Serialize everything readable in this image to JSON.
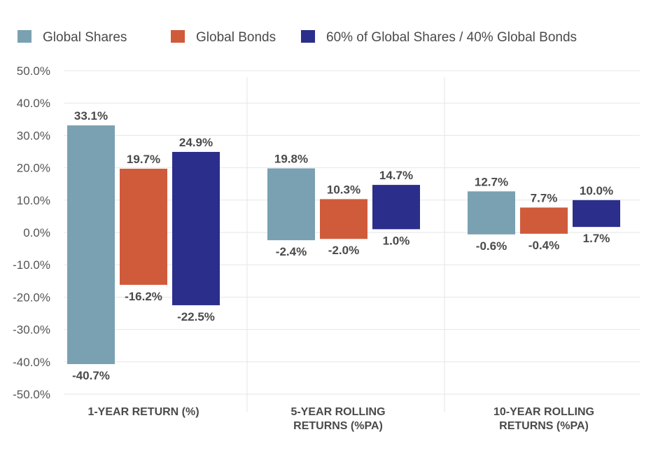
{
  "chart_data": {
    "type": "bar",
    "legend_position": "top-left",
    "grid": true,
    "ylim": [
      -50,
      50
    ],
    "y_ticks": [
      "50.0%",
      "40.0%",
      "30.0%",
      "20.0%",
      "10.0%",
      "0.0%",
      "-10.0%",
      "-20.0%",
      "-30.0%",
      "-40.0%",
      "-50.0%"
    ],
    "y_tick_values": [
      50,
      40,
      30,
      20,
      10,
      0,
      -10,
      -20,
      -30,
      -40,
      -50
    ],
    "categories": [
      [
        "1-YEAR RETURN (%)"
      ],
      [
        "5-YEAR ROLLING",
        "RETURNS (%PA)"
      ],
      [
        "10-YEAR ROLLING",
        "RETURNS (%PA)"
      ]
    ],
    "series": [
      {
        "name": "Global Shares",
        "color": "#7aa1b2",
        "high": [
          33.1,
          19.8,
          12.7
        ],
        "low": [
          -40.7,
          -2.4,
          -0.6
        ],
        "high_labels": [
          "33.1%",
          "19.8%",
          "12.7%"
        ],
        "low_labels": [
          "-40.7%",
          "-2.4%",
          "-0.6%"
        ]
      },
      {
        "name": "Global Bonds",
        "color": "#cf5b3b",
        "high": [
          19.7,
          10.3,
          7.7
        ],
        "low": [
          -16.2,
          -2.0,
          -0.4
        ],
        "high_labels": [
          "19.7%",
          "10.3%",
          "7.7%"
        ],
        "low_labels": [
          "-16.2%",
          "-2.0%",
          "-0.4%"
        ]
      },
      {
        "name": "60% of Global Shares / 40% Global Bonds",
        "color": "#2b2e8a",
        "high": [
          24.9,
          14.7,
          10.0
        ],
        "low": [
          -22.5,
          1.0,
          1.7
        ],
        "high_labels": [
          "24.9%",
          "14.7%",
          "10.0%"
        ],
        "low_labels": [
          "-22.5%",
          "1.0%",
          "1.7%"
        ]
      }
    ]
  }
}
